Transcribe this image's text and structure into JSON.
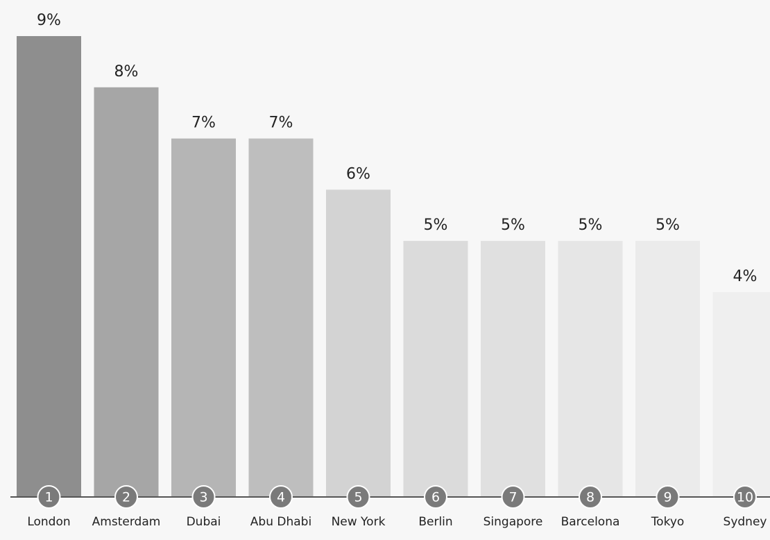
{
  "chart_data": {
    "type": "bar",
    "categories": [
      "London",
      "Amsterdam",
      "Dubai",
      "Abu Dhabi",
      "New York",
      "Berlin",
      "Singapore",
      "Barcelona",
      "Tokyo",
      "Sydney"
    ],
    "values": [
      9,
      8,
      7,
      7,
      6,
      5,
      5,
      5,
      5,
      4
    ],
    "value_labels": [
      "9%",
      "8%",
      "7%",
      "7%",
      "6%",
      "5%",
      "5%",
      "5%",
      "5%",
      "4%"
    ],
    "ranks": [
      1,
      2,
      3,
      4,
      5,
      6,
      7,
      8,
      9,
      10
    ],
    "colors": [
      "#8e8e8e",
      "#a6a6a6",
      "#b5b5b5",
      "#bebebe",
      "#d3d3d3",
      "#dbdbdb",
      "#e0e0e0",
      "#e6e6e6",
      "#ebebeb",
      "#efefef"
    ]
  }
}
